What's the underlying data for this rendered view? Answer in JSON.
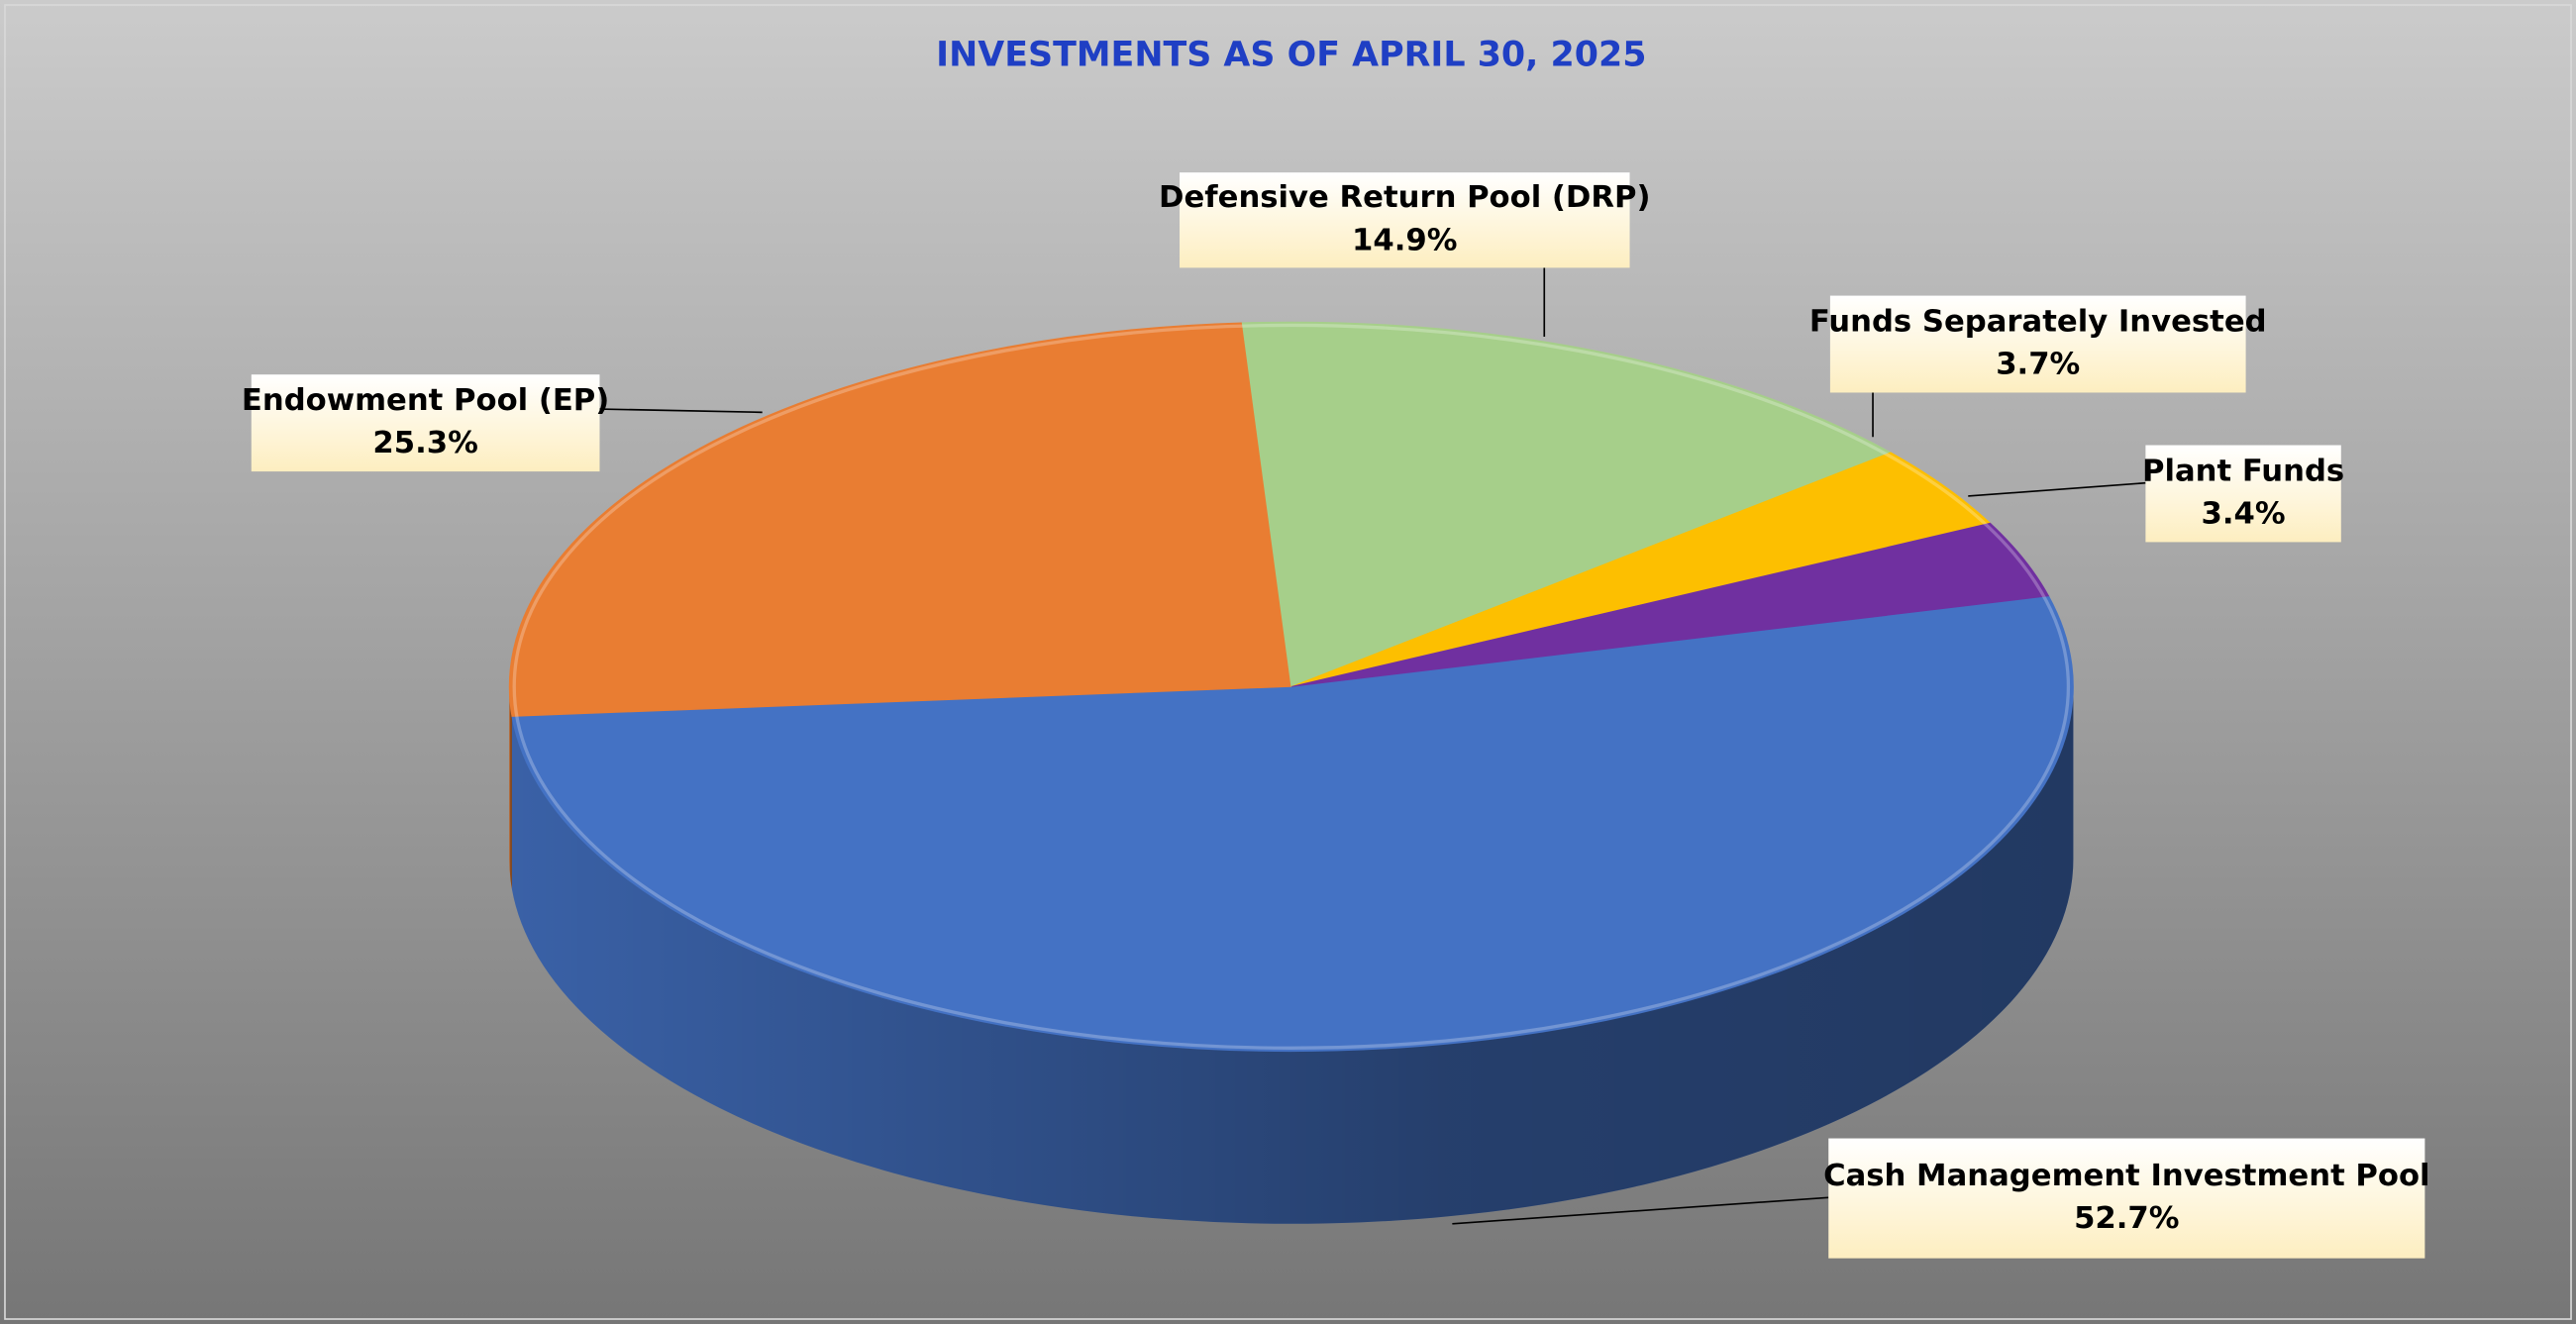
{
  "chart_data": {
    "type": "pie",
    "title": "INVESTMENTS AS OF APRIL 30, 2025",
    "categories": [
      "Cash Management Investment Pool",
      "Endowment Pool (EP)",
      "Defensive Return Pool (DRP)",
      "Funds Separately Invested",
      "Plant Funds"
    ],
    "values": [
      52.7,
      25.3,
      14.9,
      3.7,
      3.4
    ],
    "value_labels": [
      "52.7%",
      "25.3%",
      "14.9%",
      "3.7%",
      "3.4%"
    ],
    "colors": [
      "#4472c4",
      "#e97d32",
      "#a6cf8a",
      "#fdbf00",
      "#7030a0"
    ]
  }
}
